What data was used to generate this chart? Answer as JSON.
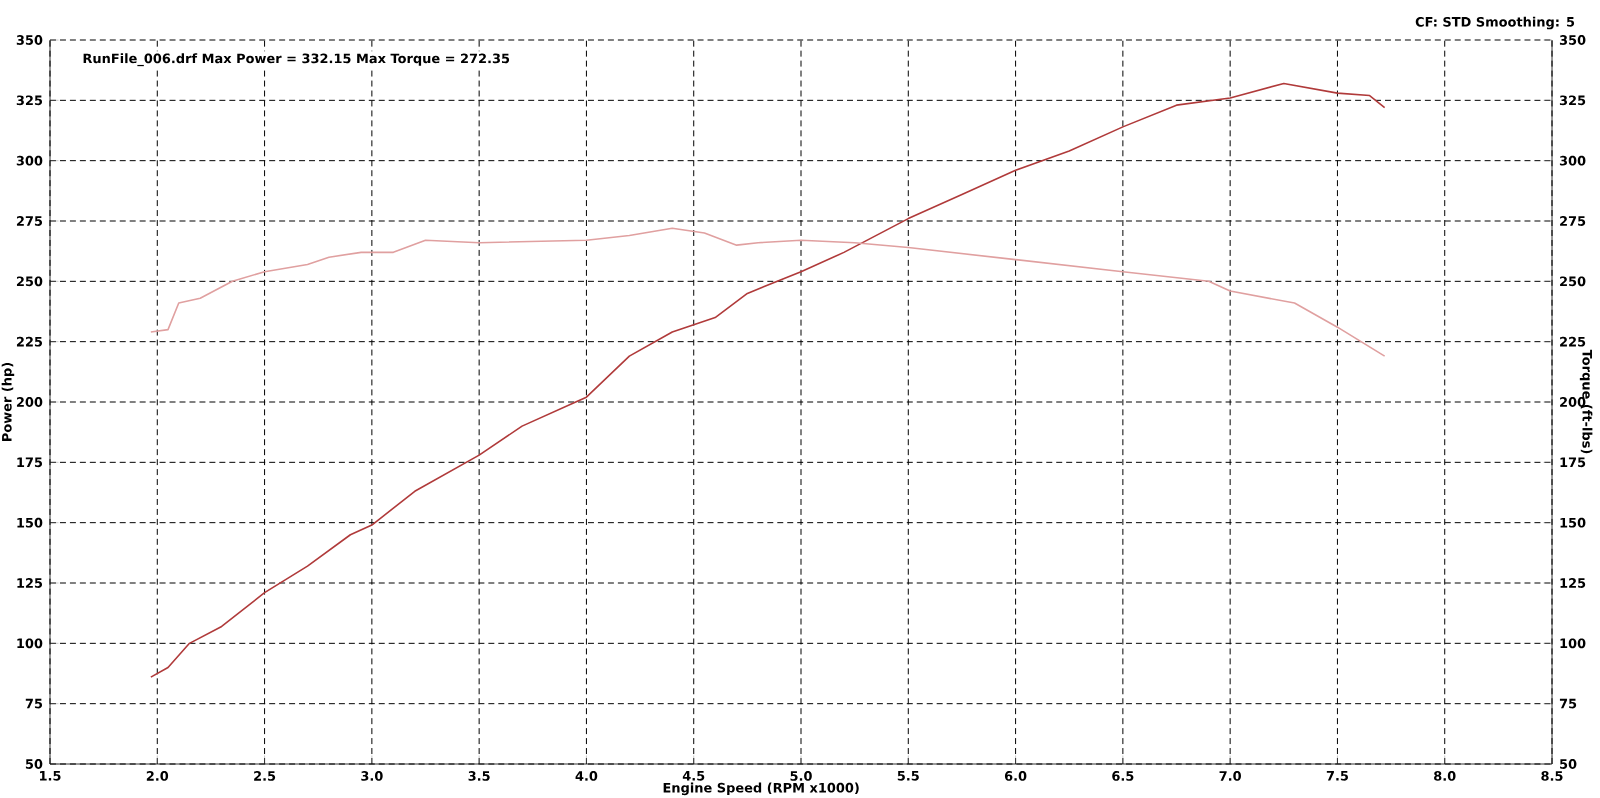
{
  "chart_data": {
    "type": "line",
    "xlabel": "Engine Speed (RPM x1000)",
    "ylabel": "Power (hp)",
    "y2label": "Torque (ft-lbs)",
    "annotations": [
      "RunFile_006.drf Max Power = 332.15     Max Torque = 272.35",
      "CF: STD  Smoothing: 5"
    ],
    "xlim": [
      1.5,
      8.5
    ],
    "xticks": [
      {
        "value": 1.5,
        "label": "1.5"
      },
      {
        "value": 2,
        "label": "2.0"
      },
      {
        "value": 2.5,
        "label": "2.5"
      },
      {
        "value": 3,
        "label": "3.0"
      },
      {
        "value": 3.5,
        "label": "3.5"
      },
      {
        "value": 4,
        "label": "4.0"
      },
      {
        "value": 4.5,
        "label": "4.5"
      },
      {
        "value": 5,
        "label": "5.0"
      },
      {
        "value": 5.5,
        "label": "5.5"
      },
      {
        "value": 6,
        "label": "6.0"
      },
      {
        "value": 6.5,
        "label": "6.5"
      },
      {
        "value": 7,
        "label": "7.0"
      },
      {
        "value": 7.5,
        "label": "7.5"
      },
      {
        "value": 8,
        "label": "8.0"
      },
      {
        "value": 8.5,
        "label": "8.5"
      }
    ],
    "ylim": [
      50,
      350
    ],
    "yticks": [
      50,
      75,
      100,
      125,
      150,
      175,
      200,
      225,
      250,
      275,
      300,
      325,
      350
    ],
    "y2lim": [
      50,
      350
    ],
    "y2ticks": [
      50,
      75,
      100,
      125,
      150,
      175,
      200,
      225,
      250,
      275,
      300,
      325,
      350
    ],
    "grid": true,
    "marker": "none",
    "series": [
      {
        "color": "#b03a3a",
        "x": [
          1.97,
          2.05,
          2.15,
          2.3,
          2.5,
          2.7,
          2.9,
          3.0,
          3.2,
          3.5,
          3.7,
          3.95,
          4.0,
          4.2,
          4.4,
          4.5,
          4.6,
          4.75,
          5.0,
          5.2,
          5.5,
          5.75,
          6.0,
          6.25,
          6.5,
          6.75,
          7.0,
          7.25,
          7.5,
          7.65,
          7.72
        ],
        "values": [
          86,
          90,
          100,
          107,
          121,
          132,
          145,
          149,
          163,
          178,
          190,
          200,
          202,
          219,
          229,
          232,
          235,
          245,
          254,
          262,
          276,
          286,
          296,
          304,
          314,
          323,
          326,
          332,
          328,
          327,
          322
        ]
      },
      {
        "color": "#e0a0a0",
        "axis": "y2",
        "x": [
          1.97,
          2.05,
          2.1,
          2.2,
          2.35,
          2.5,
          2.7,
          2.8,
          2.95,
          3.1,
          3.25,
          3.5,
          4.0,
          4.2,
          4.4,
          4.55,
          4.7,
          4.8,
          5.0,
          5.25,
          5.5,
          6.0,
          6.5,
          6.9,
          7.0,
          7.3,
          7.5,
          7.72
        ],
        "values": [
          229,
          230,
          241,
          243,
          250,
          254,
          257,
          260,
          262,
          262,
          267,
          266,
          267,
          269,
          272,
          270,
          265,
          266,
          267,
          266,
          264,
          259,
          254,
          250,
          246,
          241,
          231,
          219
        ]
      }
    ]
  }
}
